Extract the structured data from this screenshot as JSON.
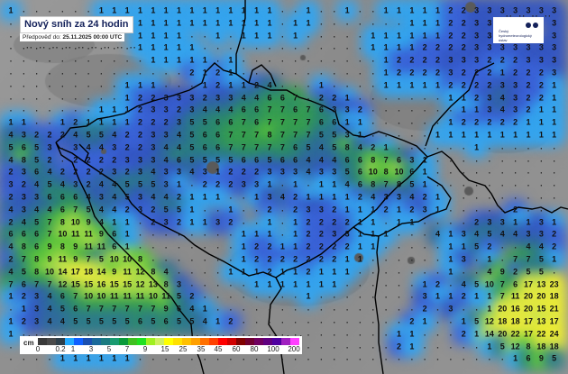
{
  "header": {
    "title": "Nový sníh za 24 hodin",
    "forecast_label": "Předpověď do:",
    "forecast_time": "25.11.2025 00:00 UTC"
  },
  "logo": {
    "text": "Český hydrometeorologický ústav"
  },
  "legend": {
    "unit": "cm",
    "colors": [
      "#3a3a3a",
      "#4a4a4a",
      "#2e3f4a",
      "#22aaff",
      "#1060ff",
      "#1a4fb0",
      "#1a6a9a",
      "#1a7a80",
      "#1a9a70",
      "#0a9a3a",
      "#40c020",
      "#20e020",
      "#a0f020",
      "#d0f060",
      "#ffff00",
      "#ffe000",
      "#ffc000",
      "#ffa000",
      "#ff7000",
      "#ff4000",
      "#ff0000",
      "#d00000",
      "#800000",
      "#700030",
      "#700060",
      "#600080",
      "#5000a0",
      "#a020c0",
      "#ff40ff"
    ],
    "labels": [
      "0",
      "0.2",
      "1",
      "3",
      "5",
      "7",
      "9",
      "15",
      "25",
      "35",
      "45",
      "60",
      "80",
      "100",
      "200"
    ]
  },
  "map": {
    "terrain_color": "#8e8e8e",
    "rows": [
      "1 . . . . . . 1 1 1 1 1 1 1 1 1 1 1 1 1 1 . . 1 . . 1 . . 1 1 1 1 1 2 2 3 3 3 3 3 3 3",
      ". . . . . . . . . . 1 1 1 1 1 1 1 1 1 1 1 . 1 1 . . . . . . . 1 1 1 2 2 3 3 . . . . 3",
      ". . . . . . . . . . 1 1 1 1 . . 1 . 1 1 1 . 1 . . . . . 1 1 1 1 1 1 2 2 3 3 . . . . 3",
      ". . . . . . . . . . 1 1 1 1 1 . . . . . . . . . . . . . 1 1 1 1 2 2 2 2 3 3 3 3 3 3 3",
      ". . . . . . . . . . . 1 1 1 1 1 . 1 . . . . . . . . . . . 1 2 2 2 2 3 3 3 2 2 2 3 3 3",
      ". . . . . . . . . . . . . . 2 1 2 1 . . . . . . . . . . . 1 2 2 2 2 3 2 2 2 1 2 2 2 3",
      ". . . . . . . . . 1 1 1 . . . 1 2 1 1 2 4 . . . 1 . . . . 1 1 1 1 1 2 2 2 2 3 3 2 2 1",
      ". . . . . . . . . 1 2 2 3 3 3 2 3 3 4 4 6 6 7 . 2 2 1 . . . . . . . 1 1 2 3 4 3 2 2 1",
      ". . . . . . . 1 1 1 2 3 3 2 3 4 4 4 6 6 7 7 6 7 6 3 3 2 . . . . . . . 1 1 3 4 3 2 1 1",
      "1 1 . . 1 2 1 1 1 1 2 2 2 3 5 5 6 6 7 6 7 7 7 7 6 6 1 1 . . . . . . 1 2 2 2 2 2 1 1 1",
      "4 3 2 2 2 4 5 5 4 2 2 3 3 4 5 6 6 7 7 7 8 7 7 7 5 5 3 1 . . . . . 1 1 1 1 1 1 1 1 1 1",
      "5 6 5 3 . 3 4 4 3 2 2 3 4 4 5 6 6 7 7 7 7 7 6 5 4 5 8 4 2 1 . . . . . . 1 . . . . . .",
      "4 8 5 2 . 2 2 2 2 3 3 3 4 6 5 5 5 5 6 6 5 6 6 4 4 4 6 6 8 7 6 3 1 . . . . . . . . . .",
      "2 3 6 4 2 2 2 2 3 2 3 4 3 3 4 3 1 2 2 2 3 3 3 4 3 3 5 6 10 8 10 6 1 . . . . . . . . . .",
      "3 2 4 5 4 3 2 4 4 5 5 5 3 1 . 2 2 2 3 3 1 . 1 . 1 1 4 6 8 7 8 5 1 . . . . . . . . . .",
      "2 3 3 6 6 6 4 3 4 5 3 4 4 2 1 1 1 . . 1 3 4 2 1 1 1 1 2 4 3 3 4 2 1 . . . . . . . . .",
      "4 3 4 4 6 7 5 4 4 2 3 2 5 5 1 . . 1 . . 2 . 2 3 3 2 1 1 1 2 1 2 3 1 . . . . . 2 . . .",
      "2 4 5 7 8 10 9 4 1 1 . 2 3 2 1 1 3 2 . . 1 . 1 2 2 2 2 1 1 . 1 1 . . . . 2 3 3 1 1 3 1",
      "6 6 6 7 10 11 11 9 6 1 . . . . . . . . 1 1 1 . 1 2 2 3 3 1 1 1 . . . 4 1 3 4 5 4 4 3 3 2",
      "4 8 6 9 8 9 11 11 6 1 . . . . . . . . 1 2 2 1 1 2 2 2 2 1 1 . . . . . 1 1 5 2 . . 4 4 2",
      "2 7 8 9 11 9 7 5 10 10 8 . . . . . . . 1 2 2 2 2 2 2 2 1 1 . . . . . . 1 3 . 1 . 7 7 5 1",
      "4 5 8 10 14 17 18 14 9 11 12 8 4 . . . . 1 1 1 2 1 1 2 1 1 1 . . . . . . . 1 . . 4 9 2 5 5 .",
      "7 6 7 7 12 15 15 16 15 15 12 13 8 3 . . . . . 1 1 1 1 1 1 1 . . . . . . 1 2 . 4 5 10 7 6 17 13 23",
      "1 2 3 4 6 7 10 10 11 11 11 10 11 5 2 . . . . . . . . 1 . . . . . . . . 3 1 1 2 1 1 7 11 20 20 18",
      ". 1 3 4 5 6 7 7 7 7 7 7 9 6 4 1 . . . . . . . . . . . . . . . . 2 . 3 . . 1 20 16 20 15 21",
      "1 2 3 4 4 5 5 5 5 5 6 5 6 5 5 4 1 2 . . . . . . . . . . . . . 2 1 . . 1 5 12 18 18 17 13 17",
      "1 . . . . . . . . . . . . . . . . . . . . . . . . . . . . . 1 1 . . . 2 1 14 20 22 17 22 24",
      ". . . . . . . . . . . . . . . . . . . . . . . . . . . . . . 2 1 . . . . . 1 5 12 8 18 18",
      ". . . . 1 1 1 1 1 1 . . . . . . . . . . . . . . . . . . . . . . . . . . . . . 1 6 9 5"
    ]
  }
}
